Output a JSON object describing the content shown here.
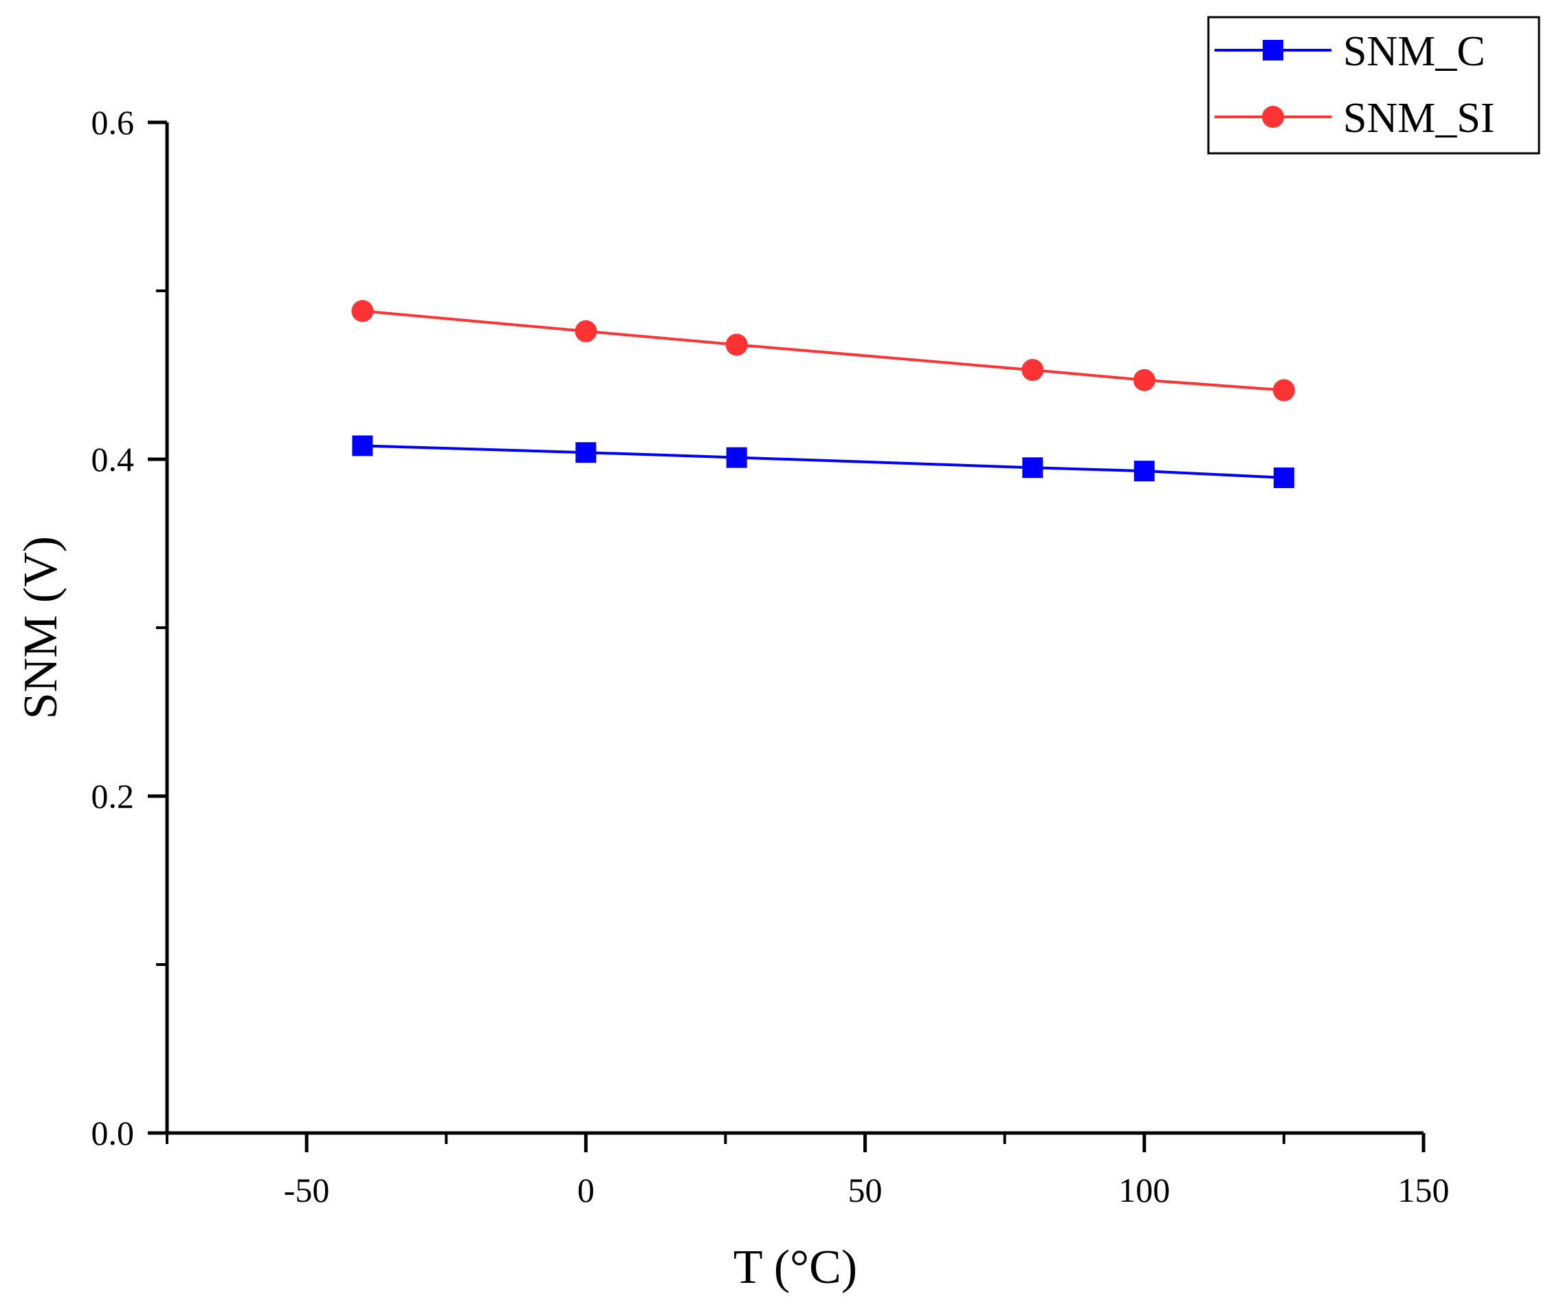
{
  "chart_data": {
    "type": "line",
    "title": "",
    "xlabel": "T (°C)",
    "ylabel": "SNM (V)",
    "xlim": [
      -75,
      150
    ],
    "ylim": [
      0.0,
      0.6
    ],
    "x_ticks": [
      -50,
      0,
      50,
      100,
      150
    ],
    "x_tick_labels": [
      "-50",
      "0",
      "50",
      "100",
      "150"
    ],
    "x_minor_ticks": [
      -75,
      -25,
      25,
      75,
      125
    ],
    "y_ticks": [
      0.0,
      0.2,
      0.4,
      0.6
    ],
    "y_tick_labels": [
      "0.0",
      "0.2",
      "0.4",
      "0.6"
    ],
    "y_minor_ticks": [
      0.1,
      0.3,
      0.5
    ],
    "grid": false,
    "legend_position": "top-right",
    "x": [
      -40,
      0,
      27,
      80,
      100,
      125
    ],
    "series": [
      {
        "name": "SNM_C",
        "color": "#0000ff",
        "marker": "square",
        "values": [
          0.408,
          0.404,
          0.401,
          0.395,
          0.393,
          0.389
        ]
      },
      {
        "name": "SNM_SI",
        "color": "#ff3333",
        "marker": "circle",
        "values": [
          0.488,
          0.476,
          0.468,
          0.453,
          0.447,
          0.441
        ]
      }
    ]
  }
}
